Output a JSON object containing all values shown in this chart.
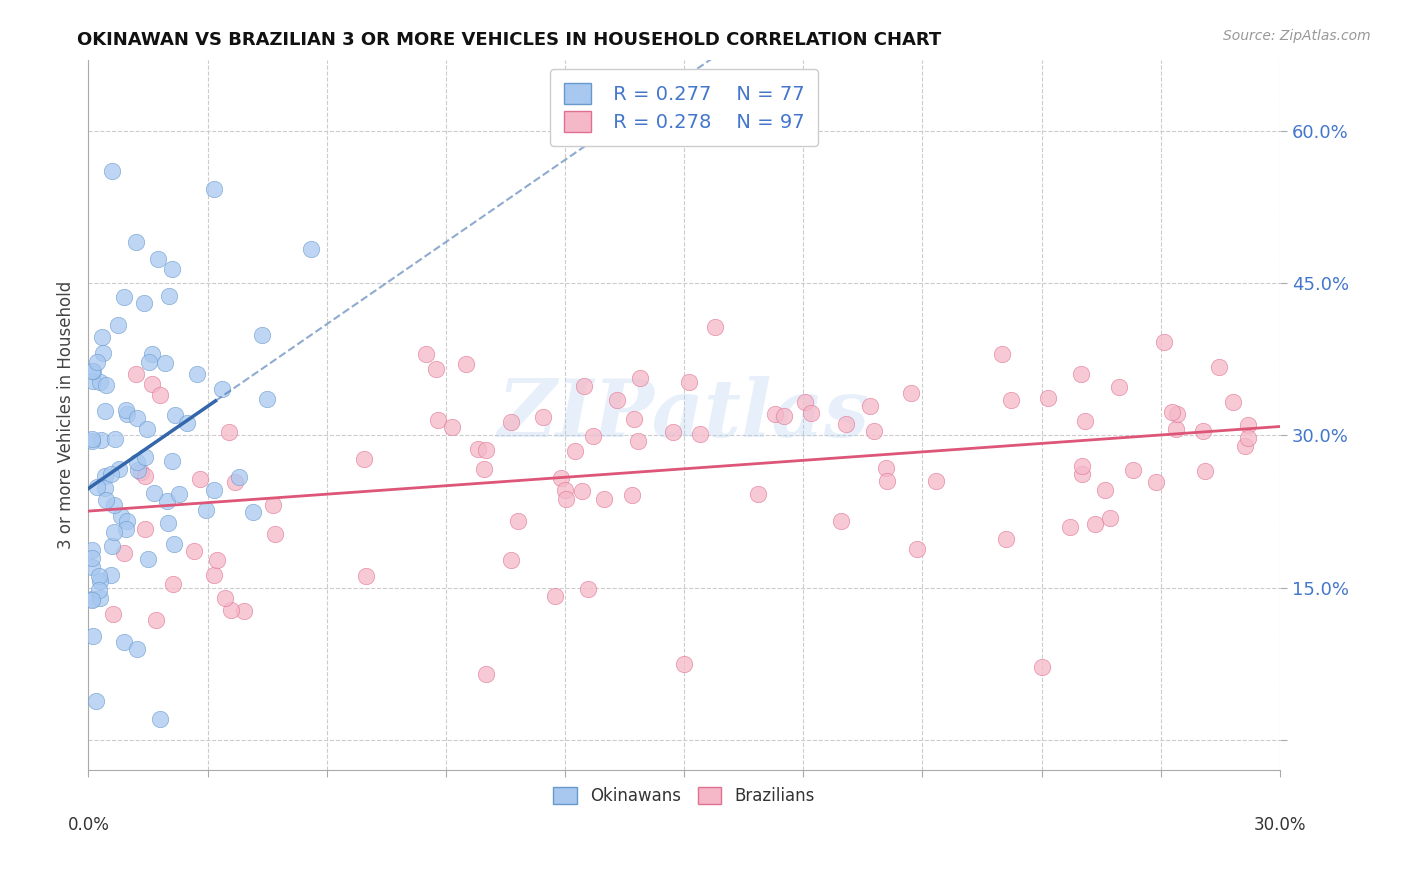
{
  "title": "OKINAWAN VS BRAZILIAN 3 OR MORE VEHICLES IN HOUSEHOLD CORRELATION CHART",
  "source": "Source: ZipAtlas.com",
  "ylabel": "3 or more Vehicles in Household",
  "yticks": [
    0.0,
    0.15,
    0.3,
    0.45,
    0.6
  ],
  "ytick_labels": [
    "",
    "15.0%",
    "30.0%",
    "45.0%",
    "60.0%"
  ],
  "xlim": [
    0.0,
    0.3
  ],
  "ylim": [
    -0.03,
    0.67
  ],
  "legend_r1": "R = 0.277",
  "legend_n1": "N = 77",
  "legend_r2": "R = 0.278",
  "legend_n2": "N = 97",
  "okinawan_color": "#a8c8f0",
  "okinawan_edge": "#6699cc",
  "brazilian_color": "#f5b8c8",
  "brazilian_edge": "#e07090",
  "trendline_blue": "#3366aa",
  "trendline_pink": "#dd5577",
  "watermark": "ZIPatlas",
  "grid_color": "#cccccc",
  "title_color": "#111111",
  "right_tick_color": "#4477cc",
  "bottom_label_color": "#333333"
}
